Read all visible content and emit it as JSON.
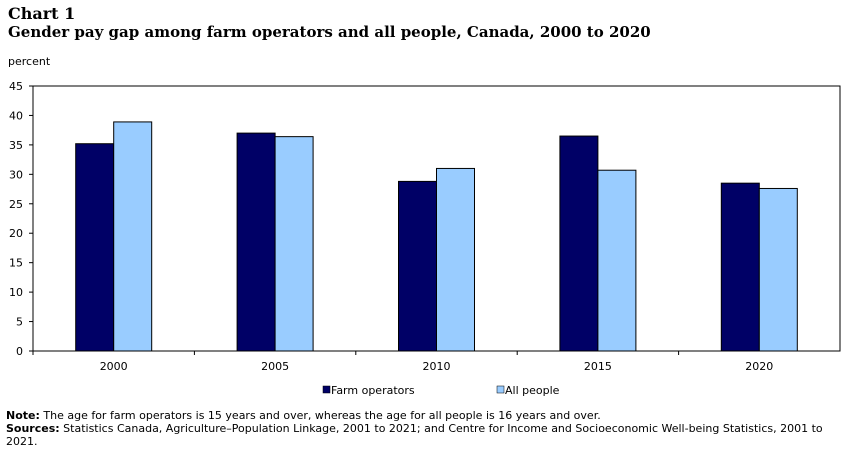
{
  "header": {
    "chart_label": "Chart 1",
    "title": "Gender pay gap among farm operators and all people, Canada, 2000 to 2020",
    "unit": "percent"
  },
  "chart_data": {
    "type": "bar",
    "categories": [
      "2000",
      "2005",
      "2010",
      "2015",
      "2020"
    ],
    "series": [
      {
        "name": "Farm operators",
        "color": "#000066",
        "values": [
          35.2,
          37.0,
          28.8,
          36.5,
          28.5
        ]
      },
      {
        "name": "All people",
        "color": "#99ccff",
        "values": [
          38.9,
          36.4,
          31.0,
          30.7,
          27.6
        ]
      }
    ],
    "ylabel": "percent",
    "ylim": [
      0,
      45
    ],
    "yticks": [
      0,
      5,
      10,
      15,
      20,
      25,
      30,
      35,
      40,
      45
    ],
    "grid": false,
    "legend": "bottom"
  },
  "notes": {
    "note_label": "Note:",
    "note_text": " The age for farm operators is 15 years and over, whereas the age for all people is 16 years and over.",
    "sources_label": "Sources:",
    "sources_text": " Statistics Canada, Agriculture–Population Linkage, 2001 to 2021; and Centre for Income and Socioeconomic Well-being Statistics, 2001 to 2021."
  }
}
